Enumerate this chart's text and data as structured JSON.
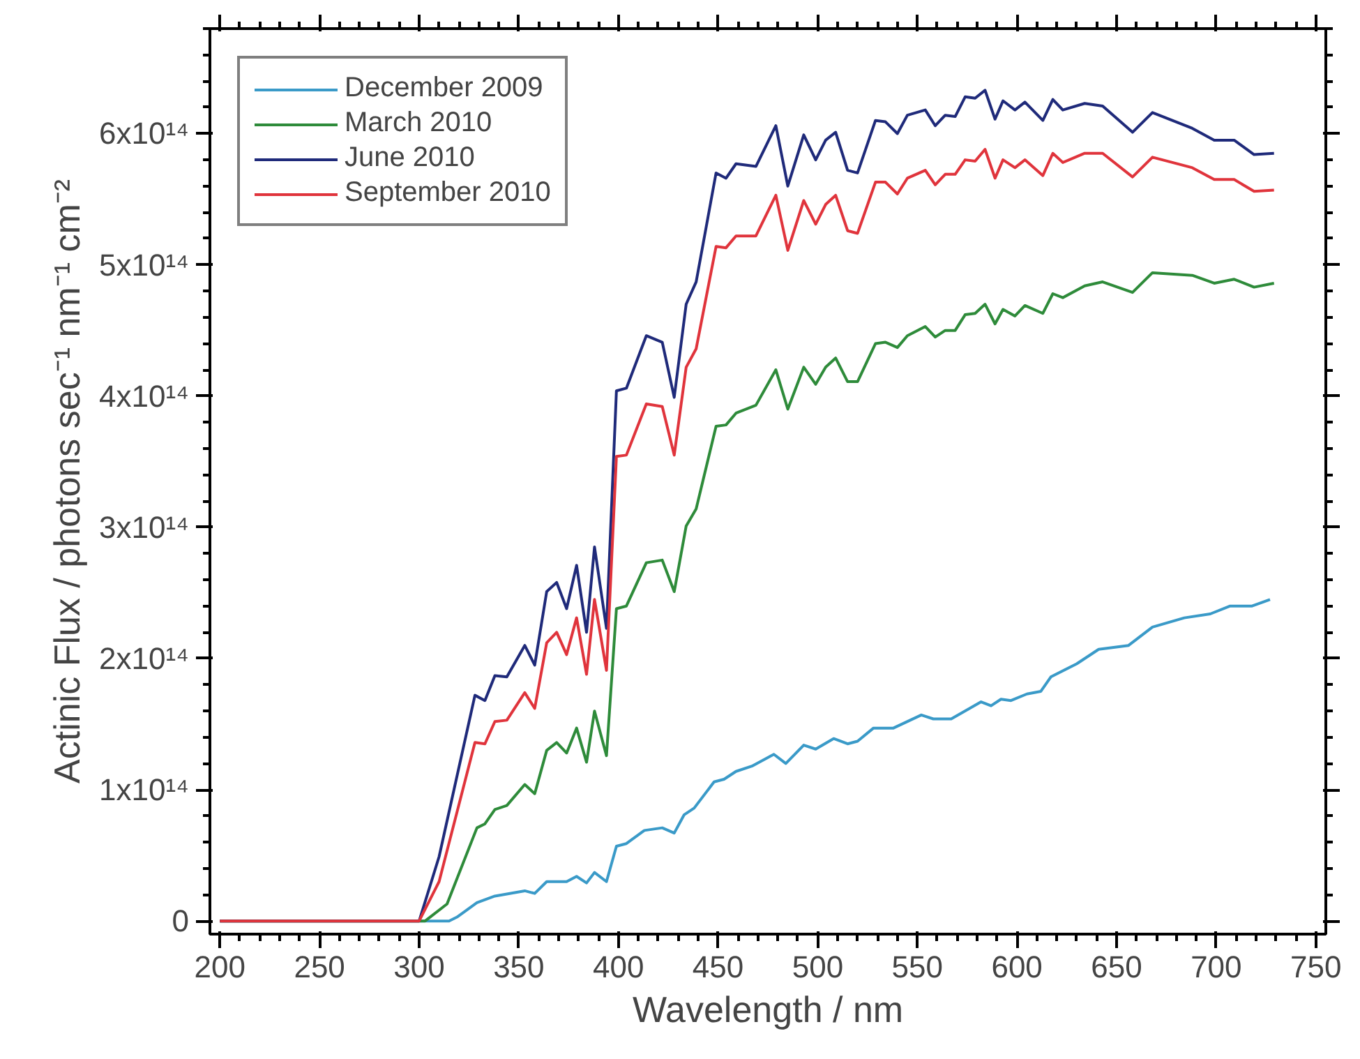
{
  "chart_data": {
    "type": "line",
    "xlabel": "Wavelength / nm",
    "ylabel": "Actinic Flux / photons sec⁻¹ nm⁻¹ cm⁻²",
    "xlim": [
      195,
      755
    ],
    "ylim": [
      -10000000000000.0,
      680000000000000.0
    ],
    "xticks": [
      200,
      250,
      300,
      350,
      400,
      450,
      500,
      550,
      600,
      650,
      700,
      750
    ],
    "yticks": [
      {
        "value": 0,
        "label": "0"
      },
      {
        "value": 100000000000000.0,
        "label": "1x10¹⁴"
      },
      {
        "value": 200000000000000.0,
        "label": "2x10¹⁴"
      },
      {
        "value": 300000000000000.0,
        "label": "3x10¹⁴"
      },
      {
        "value": 400000000000000.0,
        "label": "4x10¹⁴"
      },
      {
        "value": 500000000000000.0,
        "label": "5x10¹⁴"
      },
      {
        "value": 600000000000000.0,
        "label": "6x10¹⁴"
      }
    ],
    "grid": false,
    "legend": "top left",
    "line_style": "solid",
    "marker": "none",
    "series": [
      {
        "name": "December 2009",
        "color": "#3a9ac8",
        "x": [
          200,
          315,
          319,
          329,
          338,
          353,
          358,
          364,
          374,
          379,
          384,
          388,
          394,
          399,
          404,
          413,
          422,
          428,
          433,
          438,
          448,
          453,
          459,
          467,
          478,
          484,
          493,
          499,
          508,
          515,
          520,
          528,
          538,
          552,
          558,
          567,
          582,
          587,
          592,
          597,
          605,
          612,
          617,
          630,
          641,
          656,
          668,
          684,
          697,
          707,
          718,
          727
        ],
        "values": [
          0,
          0,
          3000000000000.0,
          14000000000000.0,
          19000000000000.0,
          23000000000000.0,
          21000000000000.0,
          30000000000000.0,
          30000000000000.0,
          34000000000000.0,
          29000000000000.0,
          37000000000000.0,
          30000000000000.0,
          57000000000000.0,
          59000000000000.0,
          69000000000000.0,
          71000000000000.0,
          67000000000000.0,
          81000000000000.0,
          86000000000000.0,
          106000000000000.0,
          108000000000000.0,
          114000000000000.0,
          118000000000000.0,
          127000000000000.0,
          120000000000000.0,
          134000000000000.0,
          131000000000000.0,
          139000000000000.0,
          135000000000000.0,
          137000000000000.0,
          147000000000000.0,
          147000000000000.0,
          157000000000000.0,
          154000000000000.0,
          154000000000000.0,
          167000000000000.0,
          164000000000000.0,
          169000000000000.0,
          168000000000000.0,
          173000000000000.0,
          175000000000000.0,
          186000000000000.0,
          196000000000000.0,
          207000000000000.0,
          210000000000000.0,
          224000000000000.0,
          231000000000000.0,
          234000000000000.0,
          240000000000000.0,
          240000000000000.0,
          245000000000000.0
        ]
      },
      {
        "name": "March 2010",
        "color": "#2e8b3a",
        "x": [
          200,
          303,
          314,
          329,
          333,
          338,
          344,
          353,
          358,
          364,
          369,
          374,
          379,
          384,
          388,
          394,
          399,
          404,
          414,
          422,
          428,
          434,
          439,
          449,
          454,
          459,
          469,
          479,
          485,
          493,
          499,
          504,
          509,
          515,
          520,
          529,
          534,
          540,
          545,
          554,
          559,
          564,
          569,
          574,
          579,
          584,
          589,
          593,
          599,
          604,
          613,
          618,
          623,
          634,
          643,
          658,
          668,
          688,
          699,
          709,
          719,
          729
        ],
        "values": [
          0,
          0,
          13000000000000.0,
          71000000000000.0,
          74000000000000.0,
          85000000000000.0,
          88000000000000.0,
          104000000000000.0,
          97000000000000.0,
          130000000000000.0,
          136000000000000.0,
          128000000000000.0,
          147000000000000.0,
          121000000000000.0,
          160000000000000.0,
          126000000000000.0,
          238000000000000.0,
          240000000000000.0,
          273000000000000.0,
          275000000000000.0,
          251000000000000.0,
          301000000000000.0,
          314000000000000.0,
          377000000000000.0,
          378000000000000.0,
          387000000000000.0,
          393000000000000.0,
          420000000000000.0,
          390000000000000.0,
          422000000000000.0,
          409000000000000.0,
          422000000000000.0,
          429000000000000.0,
          411000000000000.0,
          411000000000000.0,
          440000000000000.0,
          441000000000000.0,
          437000000000000.0,
          446000000000000.0,
          453000000000000.0,
          445000000000000.0,
          450000000000000.0,
          450000000000000.0,
          462000000000000.0,
          463000000000000.0,
          470000000000000.0,
          455000000000000.0,
          466000000000000.0,
          461000000000000.0,
          469000000000000.0,
          463000000000000.0,
          478000000000000.0,
          475000000000000.0,
          484000000000000.0,
          487000000000000.0,
          479000000000000.0,
          494000000000000.0,
          492000000000000.0,
          486000000000000.0,
          489000000000000.0,
          483000000000000.0,
          486000000000000.0
        ]
      },
      {
        "name": "June 2010",
        "color": "#1f2a7a",
        "x": [
          200,
          300,
          310,
          328,
          333,
          338,
          344,
          353,
          358,
          364,
          369,
          374,
          379,
          384,
          388,
          394,
          399,
          404,
          414,
          422,
          428,
          434,
          439,
          449,
          454,
          459,
          469,
          479,
          485,
          493,
          499,
          504,
          509,
          515,
          520,
          529,
          534,
          540,
          545,
          554,
          559,
          564,
          569,
          574,
          579,
          584,
          589,
          593,
          599,
          604,
          613,
          618,
          623,
          634,
          643,
          658,
          668,
          688,
          699,
          709,
          719,
          729
        ],
        "values": [
          0,
          0,
          49000000000000.0,
          172000000000000.0,
          168000000000000.0,
          187000000000000.0,
          186000000000000.0,
          210000000000000.0,
          195000000000000.0,
          251000000000000.0,
          258000000000000.0,
          238000000000000.0,
          271000000000000.0,
          220000000000000.0,
          285000000000000.0,
          223000000000000.0,
          404000000000000.0,
          406000000000000.0,
          446000000000000.0,
          441000000000000.0,
          399000000000000.0,
          470000000000000.0,
          487000000000000.0,
          570000000000000.0,
          566000000000000.0,
          577000000000000.0,
          575000000000000.0,
          606000000000000.0,
          560000000000000.0,
          599000000000000.0,
          580000000000000.0,
          595000000000000.0,
          601000000000000.0,
          572000000000000.0,
          570000000000000.0,
          610000000000000.0,
          609000000000000.0,
          600000000000000.0,
          614000000000000.0,
          618000000000000.0,
          606000000000000.0,
          614000000000000.0,
          613000000000000.0,
          628000000000000.0,
          627000000000000.0,
          633000000000000.0,
          611000000000000.0,
          625000000000000.0,
          618000000000000.0,
          624000000000000.0,
          610000000000000.0,
          626000000000000.0,
          618000000000000.0,
          623000000000000.0,
          621000000000000.0,
          601000000000000.0,
          616000000000000.0,
          604000000000000.0,
          595000000000000.0,
          595000000000000.0,
          584000000000000.0,
          585000000000000.0
        ]
      },
      {
        "name": "September 2010",
        "color": "#e0343c",
        "x": [
          200,
          300,
          310,
          328,
          333,
          338,
          344,
          353,
          358,
          364,
          369,
          374,
          379,
          384,
          388,
          394,
          399,
          404,
          414,
          422,
          428,
          434,
          439,
          449,
          454,
          459,
          469,
          479,
          485,
          493,
          499,
          504,
          509,
          515,
          520,
          529,
          534,
          540,
          545,
          554,
          559,
          564,
          569,
          574,
          579,
          584,
          589,
          593,
          599,
          604,
          613,
          618,
          623,
          634,
          643,
          658,
          668,
          688,
          699,
          709,
          719,
          729
        ],
        "values": [
          0,
          0,
          30000000000000.0,
          136000000000000.0,
          135000000000000.0,
          152000000000000.0,
          153000000000000.0,
          174000000000000.0,
          162000000000000.0,
          212000000000000.0,
          220000000000000.0,
          203000000000000.0,
          231000000000000.0,
          188000000000000.0,
          245000000000000.0,
          191000000000000.0,
          354000000000000.0,
          355000000000000.0,
          394000000000000.0,
          392000000000000.0,
          355000000000000.0,
          422000000000000.0,
          436000000000000.0,
          514000000000000.0,
          513000000000000.0,
          522000000000000.0,
          522000000000000.0,
          553000000000000.0,
          511000000000000.0,
          549000000000000.0,
          531000000000000.0,
          546000000000000.0,
          553000000000000.0,
          526000000000000.0,
          524000000000000.0,
          563000000000000.0,
          563000000000000.0,
          554000000000000.0,
          566000000000000.0,
          572000000000000.0,
          561000000000000.0,
          569000000000000.0,
          569000000000000.0,
          580000000000000.0,
          579000000000000.0,
          588000000000000.0,
          566000000000000.0,
          580000000000000.0,
          574000000000000.0,
          580000000000000.0,
          568000000000000.0,
          585000000000000.0,
          578000000000000.0,
          585000000000000.0,
          585000000000000.0,
          567000000000000.0,
          582000000000000.0,
          574000000000000.0,
          565000000000000.0,
          565000000000000.0,
          556000000000000.0,
          557000000000000.0
        ]
      }
    ]
  }
}
